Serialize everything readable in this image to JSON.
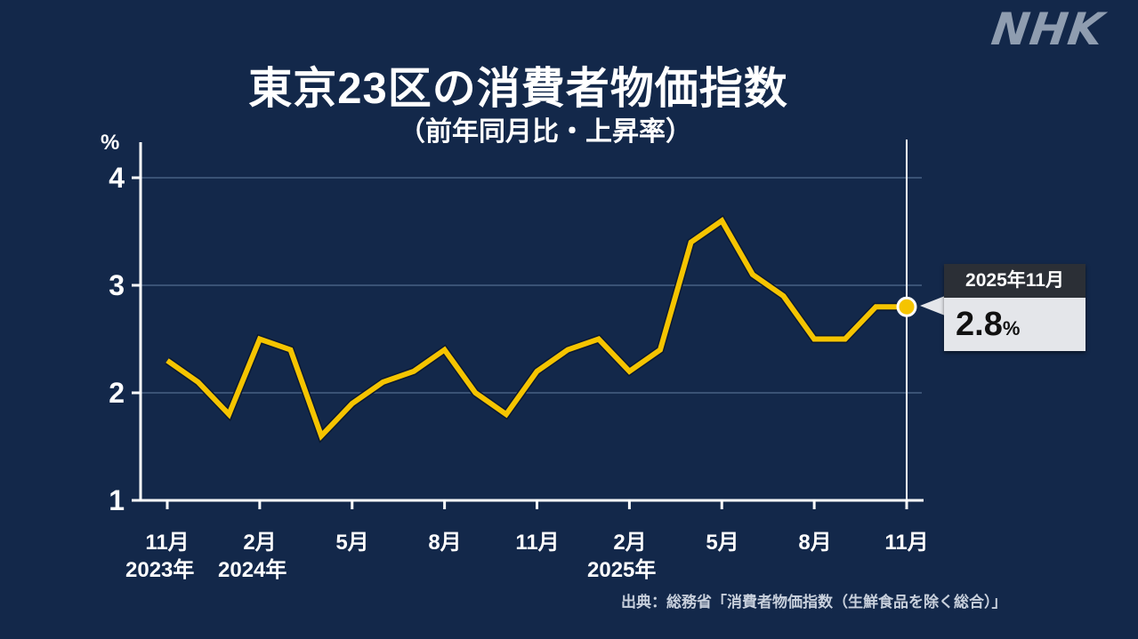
{
  "brand": {
    "logo": "NHK"
  },
  "header": {
    "title": "東京23区の消費者物価指数",
    "subtitle": "（前年同月比・上昇率）"
  },
  "axis": {
    "y_unit": "%",
    "y_ticks": [
      "4",
      "3",
      "2",
      "1"
    ],
    "x_ticks": [
      "11月",
      "2月",
      "5月",
      "8月",
      "11月",
      "2月",
      "5月",
      "8月",
      "11月"
    ],
    "x_years": [
      "2023年",
      "2024年",
      "2025年"
    ]
  },
  "callout": {
    "date": "2025年11月",
    "value": "2.8",
    "unit": "%"
  },
  "source": "出典：総務省「消費者物価指数（生鮮食品を除く総合）」",
  "colors": {
    "background": "#13284a",
    "line": "#f5c400",
    "grid": "#3a5275",
    "axis": "#ffffff"
  },
  "chart_data": {
    "type": "line",
    "title": "東京23区の消費者物価指数",
    "subtitle": "（前年同月比・上昇率）",
    "xlabel": "",
    "ylabel": "%",
    "ylim": [
      1,
      4
    ],
    "grid": true,
    "x": [
      "2023-11",
      "2023-12",
      "2024-01",
      "2024-02",
      "2024-03",
      "2024-04",
      "2024-05",
      "2024-06",
      "2024-07",
      "2024-08",
      "2024-09",
      "2024-10",
      "2024-11",
      "2024-12",
      "2025-01",
      "2025-02",
      "2025-03",
      "2025-04",
      "2025-05",
      "2025-06",
      "2025-07",
      "2025-08",
      "2025-09",
      "2025-10",
      "2025-11"
    ],
    "series": [
      {
        "name": "東京23区 消費者物価指数（生鮮食品を除く総合）前年同月比",
        "values": [
          2.3,
          2.1,
          1.8,
          2.5,
          2.4,
          1.6,
          1.9,
          2.1,
          2.2,
          2.4,
          2.0,
          1.8,
          2.2,
          2.4,
          2.5,
          2.2,
          2.4,
          3.4,
          3.6,
          3.1,
          2.9,
          2.5,
          2.5,
          2.8,
          2.8
        ]
      }
    ],
    "x_tick_labels": [
      "11月\n2023年",
      "2月\n2024年",
      "5月",
      "8月",
      "11月",
      "2月\n2025年",
      "5月",
      "8月",
      "11月"
    ],
    "annotations": [
      {
        "x": "2025-11",
        "text": "2025年11月 2.8%"
      }
    ],
    "source": "出典：総務省「消費者物価指数（生鮮食品を除く総合）」"
  }
}
